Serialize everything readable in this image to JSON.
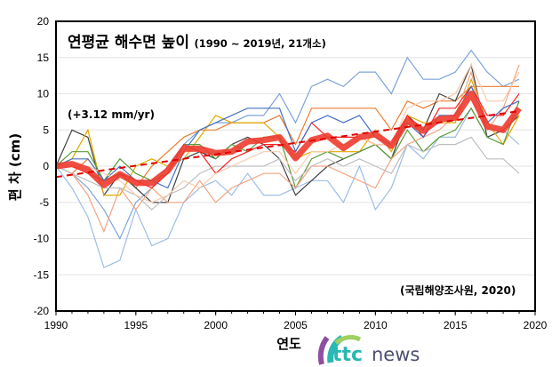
{
  "chart_data": {
    "type": "line",
    "title": "연평균 해수면 높이",
    "subtitle": "(1990 ~ 2019년, 21개소)",
    "trend_label": "(+3.12 mm/yr)",
    "source": "(국립해양조사원, 2020)",
    "xlabel": "연도",
    "ylabel": "편 차 (cm)",
    "xlim": [
      1990,
      2020
    ],
    "ylim": [
      -20,
      20
    ],
    "xticks": [
      "1990",
      "1995",
      "2000",
      "2005",
      "2010",
      "2015",
      "2020"
    ],
    "yticks": [
      "20",
      "15",
      "10",
      "5",
      "0",
      "-5",
      "-10",
      "-15",
      "-20"
    ],
    "grid": "horizontal",
    "x": [
      1990,
      1991,
      1992,
      1993,
      1994,
      1995,
      1996,
      1997,
      1998,
      1999,
      2000,
      2001,
      2002,
      2003,
      2004,
      2005,
      2006,
      2007,
      2008,
      2009,
      2010,
      2011,
      2012,
      2013,
      2014,
      2015,
      2016,
      2017,
      2018,
      2019
    ],
    "mean": {
      "color": "#ee3b2f",
      "values": [
        0,
        0.3,
        -0.5,
        -2.6,
        -1.1,
        -2.3,
        -2.3,
        -0.6,
        2.4,
        2.4,
        1.8,
        2.0,
        3.4,
        3.6,
        4.0,
        1.1,
        3.6,
        4.2,
        2.5,
        4.0,
        4.4,
        2.8,
        6.3,
        4.9,
        6.5,
        6.7,
        10.0,
        5.5,
        5.0,
        8.0
      ]
    },
    "trend": {
      "color": "#e00000",
      "values": [
        -1.5,
        7.6
      ],
      "x": [
        1990,
        2019
      ]
    },
    "series": [
      {
        "color": "#7fa3d9",
        "values": [
          0,
          -1,
          -3,
          -6,
          -10,
          -5,
          -3,
          0,
          3,
          5,
          6,
          6,
          7,
          7,
          10,
          6,
          11,
          12,
          11,
          13,
          13,
          10,
          15,
          12,
          12,
          13,
          16,
          13,
          11,
          12
        ]
      },
      {
        "color": "#9dbde6",
        "values": [
          0,
          -3,
          -7,
          -14,
          -13,
          -6,
          -11,
          -10,
          -5,
          -3,
          -2,
          -4,
          -1,
          -4,
          -4,
          -3,
          -2,
          -2,
          -5,
          0,
          -6,
          -3,
          3,
          1,
          4,
          4,
          8,
          4,
          5,
          3
        ]
      },
      {
        "color": "#ed7d31",
        "values": [
          0,
          -1,
          1,
          -2,
          -1,
          -3,
          0,
          2,
          4,
          5,
          5,
          6,
          6,
          6,
          7,
          3,
          8,
          8,
          8,
          8,
          8,
          5,
          9,
          8,
          9,
          9,
          11,
          11,
          11,
          11
        ]
      },
      {
        "color": "#404040",
        "values": [
          0,
          5,
          4,
          -4,
          -1,
          -3,
          -5,
          -5,
          1,
          2,
          1,
          3,
          4,
          3,
          1,
          -4,
          -2,
          0,
          1,
          2,
          3,
          1,
          7,
          5,
          10,
          9,
          14,
          4,
          5,
          7
        ]
      },
      {
        "color": "#e2aa00",
        "values": [
          0,
          1,
          5,
          -4,
          -4,
          0,
          1,
          0,
          1,
          4,
          7,
          6,
          6,
          6,
          4,
          1,
          2,
          2,
          2,
          2,
          5,
          2,
          7,
          6,
          6,
          6,
          12,
          6,
          3,
          7
        ]
      },
      {
        "color": "#5b9b3a",
        "values": [
          0,
          2,
          2,
          -2,
          1,
          -1,
          -2,
          -1,
          3,
          3,
          1,
          3,
          2,
          4,
          4,
          -3,
          1,
          2,
          1,
          2,
          3,
          1,
          5,
          2,
          4,
          5,
          8,
          4,
          3,
          9
        ]
      },
      {
        "color": "#f4a582",
        "values": [
          0,
          -1,
          -4,
          -9,
          -3,
          -6,
          -3,
          -5,
          -5,
          -2,
          -5,
          -3,
          -2,
          -1,
          -1,
          -3,
          0,
          0,
          -1,
          -2,
          -3,
          1,
          3,
          4,
          5,
          7,
          13,
          5,
          8,
          14
        ]
      },
      {
        "color": "#bfbfbf",
        "values": [
          0,
          -1,
          -2,
          -3,
          -3,
          -4,
          -6,
          -4,
          -3,
          -1,
          0,
          0,
          0,
          0,
          1,
          -2,
          0,
          1,
          0,
          1,
          0,
          -1,
          3,
          2,
          3,
          3,
          4,
          1,
          1,
          -1
        ]
      },
      {
        "color": "#ff2020",
        "values": [
          0,
          0,
          -1,
          -2,
          -1,
          -2,
          -3,
          -1,
          3,
          2,
          -1,
          1,
          2,
          3,
          3,
          2,
          6,
          4,
          4,
          4,
          3,
          3,
          7,
          4,
          8,
          8,
          11,
          7,
          7,
          10
        ]
      },
      {
        "color": "#4472c4",
        "values": [
          0,
          1,
          1,
          -2,
          0,
          -2,
          -2,
          -3,
          2,
          5,
          6,
          7,
          8,
          8,
          8,
          2,
          6,
          7,
          6,
          7,
          4,
          3,
          6,
          4,
          7,
          7,
          11,
          6,
          8,
          9
        ]
      },
      {
        "color": "#f8cbad",
        "values": [
          0,
          0,
          0,
          -1,
          -2,
          -4,
          -5,
          -4,
          -2,
          -3,
          -1,
          0,
          1,
          2,
          2,
          -1,
          2,
          2,
          3,
          4,
          3,
          3,
          8,
          9,
          9,
          10,
          14,
          9,
          9,
          13
        ]
      }
    ]
  },
  "watermark": "ttcnews"
}
